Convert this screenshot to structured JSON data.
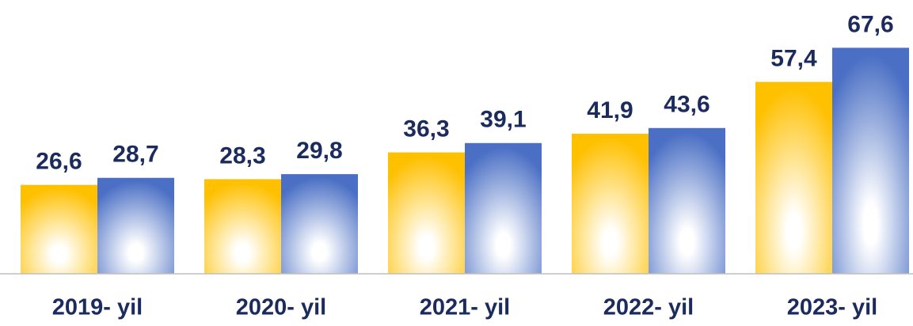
{
  "chart_data": {
    "type": "bar",
    "categories": [
      "2019- yil",
      "2020- yil",
      "2021- yil",
      "2022- yil",
      "2023- yil"
    ],
    "series": [
      {
        "color": "#ffc000",
        "values": [
          26.6,
          28.3,
          36.3,
          41.9,
          57.4
        ],
        "value_labels": [
          "26,6",
          "28,3",
          "36,3",
          "41,9",
          "57,4"
        ]
      },
      {
        "color": "#4a6fc4",
        "values": [
          28.7,
          29.8,
          39.1,
          43.6,
          67.6
        ],
        "value_labels": [
          "28,7",
          "29,8",
          "39,1",
          "43,6",
          "67,6"
        ]
      }
    ],
    "ylim": [
      0,
      80
    ]
  }
}
